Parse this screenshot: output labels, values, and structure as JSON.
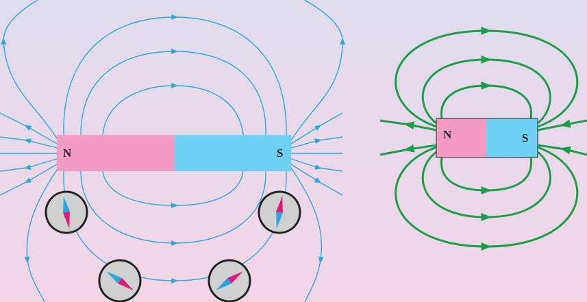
{
  "left_magnet": {
    "north": "N",
    "south": "S"
  },
  "right_magnet": {
    "north": "N",
    "south": "S"
  }
}
